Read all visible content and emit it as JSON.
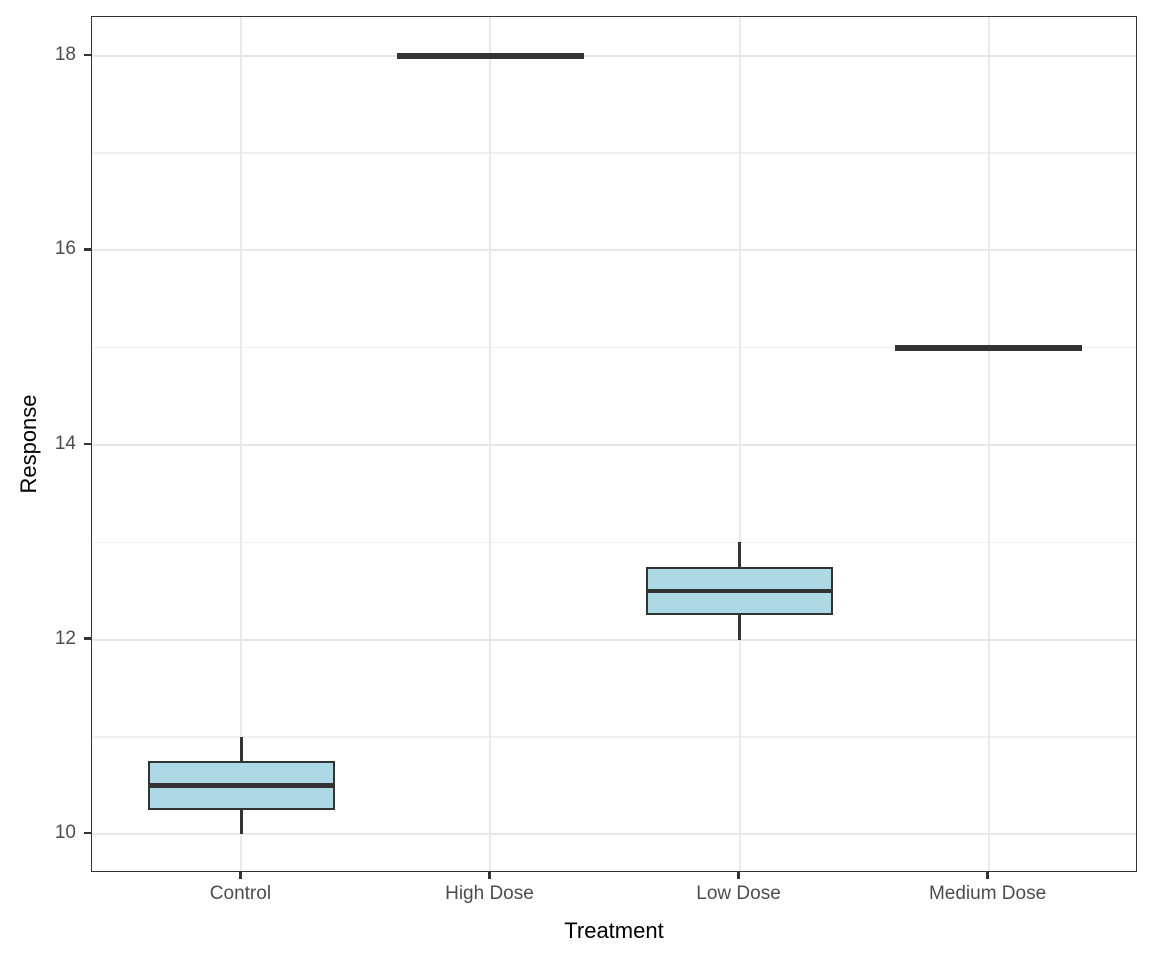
{
  "chart_data": {
    "type": "boxplot",
    "title": "",
    "xlabel": "Treatment",
    "ylabel": "Response",
    "categories": [
      "Control",
      "High Dose",
      "Low Dose",
      "Medium Dose"
    ],
    "series": [
      {
        "category": "Control",
        "min": 10,
        "q1": 10.25,
        "median": 10.5,
        "q3": 10.75,
        "max": 11
      },
      {
        "category": "High Dose",
        "min": 18,
        "q1": 18,
        "median": 18,
        "q3": 18,
        "max": 18
      },
      {
        "category": "Low Dose",
        "min": 12,
        "q1": 12.25,
        "median": 12.5,
        "q3": 12.75,
        "max": 13
      },
      {
        "category": "Medium Dose",
        "min": 15,
        "q1": 15,
        "median": 15,
        "q3": 15,
        "max": 15
      }
    ],
    "ylim": [
      9.6,
      18.4
    ],
    "yticks_major": [
      10,
      12,
      14,
      16,
      18
    ],
    "yticks_minor": [
      11,
      13,
      15,
      17
    ],
    "box_width_units": 0.75,
    "x_domain": [
      0.4,
      4.6
    ],
    "grid": "on",
    "legend": "none",
    "colors": {
      "box_fill": "#ADD8E6",
      "box_border": "#333333",
      "median": "#333333",
      "whisker": "#333333",
      "grid_major": "#e6e6e6",
      "grid_minor": "#f0f0f0",
      "panel_border": "#333333",
      "tick_label": "#4d4d4d",
      "axis_title": "#000000",
      "background": "#ffffff"
    }
  }
}
